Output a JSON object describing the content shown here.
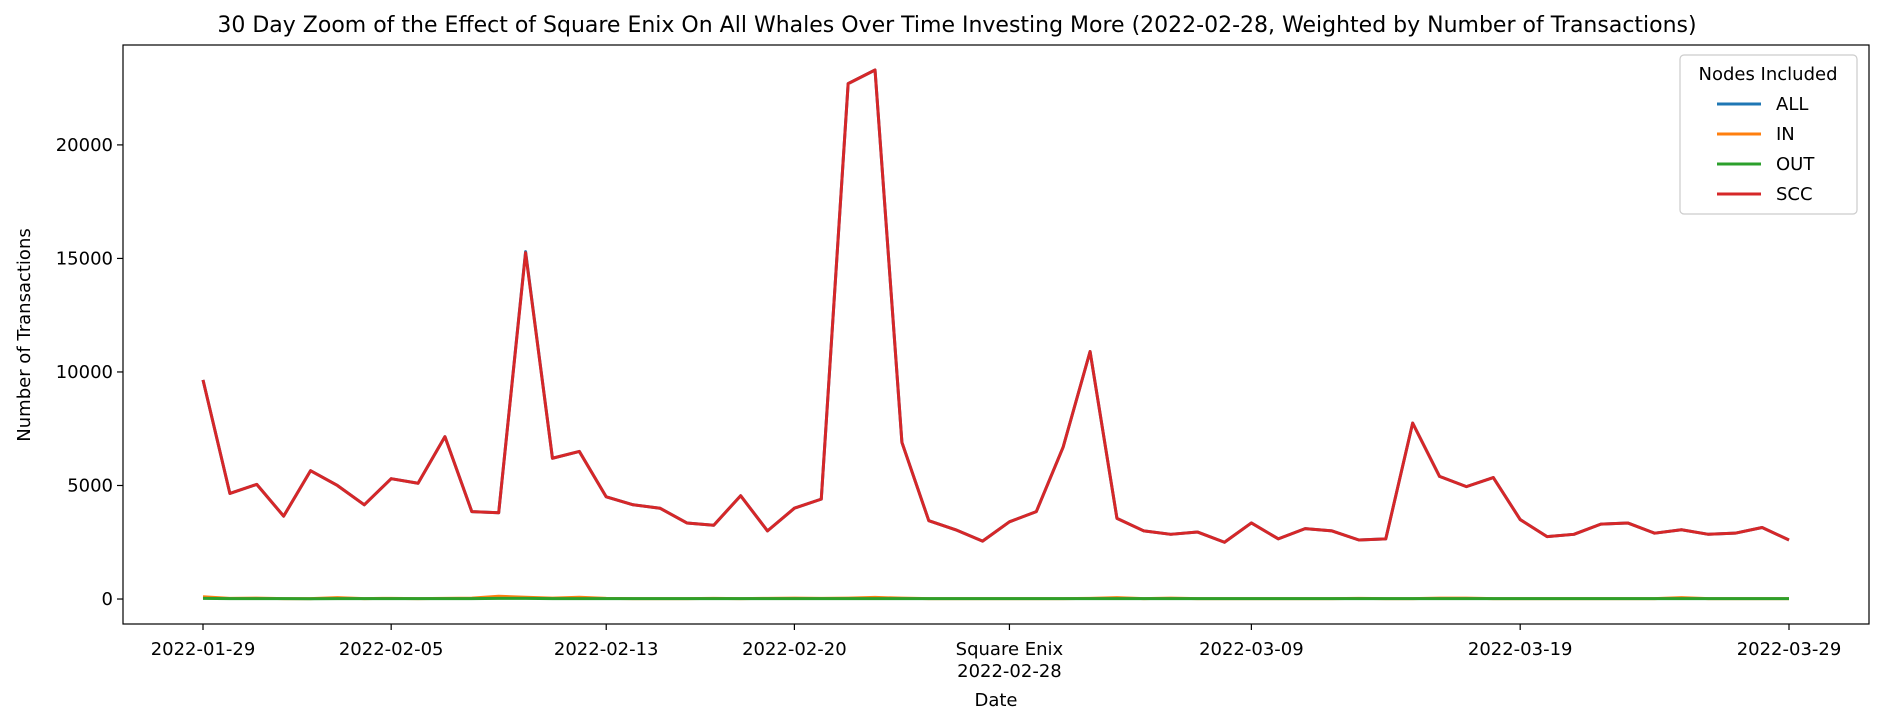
{
  "chart_data": {
    "type": "line",
    "title": "30 Day Zoom of the Effect of Square Enix On All Whales Over Time Investing More (2022-02-28, Weighted by Number of Transactions)",
    "xlabel": "Date",
    "ylabel": "Number of Transactions",
    "ylim": [
      -1100,
      24400
    ],
    "y_ticks": [
      0,
      5000,
      10000,
      15000,
      20000
    ],
    "x_ticks": [
      "2022-01-29",
      "2022-02-05",
      "2022-02-13",
      "2022-02-20",
      "2022-02-28",
      "2022-03-09",
      "2022-03-19",
      "2022-03-29"
    ],
    "event_label": "Square Enix",
    "event_date": "2022-02-28",
    "legend": {
      "title": "Nodes Included",
      "placement": "top-right"
    },
    "grid": false,
    "x": [
      "2022-01-29",
      "2022-01-30",
      "2022-01-31",
      "2022-02-01",
      "2022-02-02",
      "2022-02-03",
      "2022-02-04",
      "2022-02-05",
      "2022-02-06",
      "2022-02-07",
      "2022-02-08",
      "2022-02-09",
      "2022-02-10",
      "2022-02-11",
      "2022-02-12",
      "2022-02-13",
      "2022-02-14",
      "2022-02-15",
      "2022-02-16",
      "2022-02-17",
      "2022-02-18",
      "2022-02-19",
      "2022-02-20",
      "2022-02-21",
      "2022-02-22",
      "2022-02-23",
      "2022-02-24",
      "2022-02-25",
      "2022-02-26",
      "2022-02-27",
      "2022-02-28",
      "2022-03-01",
      "2022-03-02",
      "2022-03-03",
      "2022-03-04",
      "2022-03-05",
      "2022-03-06",
      "2022-03-07",
      "2022-03-08",
      "2022-03-09",
      "2022-03-10",
      "2022-03-11",
      "2022-03-12",
      "2022-03-13",
      "2022-03-14",
      "2022-03-15",
      "2022-03-16",
      "2022-03-17",
      "2022-03-18",
      "2022-03-19",
      "2022-03-20",
      "2022-03-21",
      "2022-03-22",
      "2022-03-23",
      "2022-03-24",
      "2022-03-25",
      "2022-03-26",
      "2022-03-27",
      "2022-03-28",
      "2022-03-29"
    ],
    "series": [
      {
        "name": "ALL",
        "color": "#1f77b4",
        "values": [
          9650,
          4650,
          5050,
          3650,
          5650,
          5000,
          4150,
          5300,
          5100,
          7150,
          3850,
          3800,
          15300,
          6200,
          6500,
          4500,
          4150,
          4000,
          3350,
          3250,
          4550,
          3000,
          4000,
          4400,
          22700,
          23300,
          6900,
          3450,
          3050,
          2550,
          3400,
          3850,
          6700,
          10900,
          3550,
          3000,
          2850,
          2950,
          2500,
          3350,
          2650,
          3100,
          3000,
          2600,
          2650,
          7750,
          5400,
          4950,
          5350,
          3500,
          2750,
          2850,
          3300,
          3350,
          2900,
          3050,
          2850,
          2900,
          3150,
          2600
        ]
      },
      {
        "name": "IN",
        "color": "#ff7f0e",
        "values": [
          100,
          30,
          40,
          20,
          20,
          60,
          20,
          30,
          20,
          30,
          40,
          120,
          80,
          40,
          80,
          30,
          20,
          20,
          20,
          30,
          20,
          30,
          40,
          30,
          40,
          70,
          40,
          20,
          20,
          20,
          20,
          20,
          20,
          30,
          60,
          20,
          40,
          20,
          20,
          20,
          20,
          20,
          20,
          30,
          20,
          20,
          40,
          40,
          20,
          20,
          20,
          20,
          20,
          20,
          20,
          60,
          20,
          20,
          20,
          20
        ]
      },
      {
        "name": "OUT",
        "color": "#2ca02c",
        "values": [
          30,
          20,
          20,
          20,
          10,
          20,
          20,
          20,
          20,
          20,
          20,
          30,
          30,
          20,
          20,
          20,
          20,
          20,
          20,
          20,
          20,
          20,
          20,
          20,
          20,
          20,
          20,
          20,
          20,
          20,
          20,
          20,
          20,
          20,
          20,
          20,
          20,
          20,
          20,
          20,
          20,
          20,
          20,
          20,
          20,
          20,
          20,
          20,
          20,
          20,
          20,
          20,
          20,
          20,
          20,
          20,
          20,
          20,
          20,
          20
        ]
      },
      {
        "name": "SCC",
        "color": "#d62728",
        "values": [
          9650,
          4650,
          5050,
          3650,
          5650,
          5000,
          4150,
          5300,
          5100,
          7150,
          3850,
          3800,
          15250,
          6200,
          6500,
          4500,
          4150,
          4000,
          3350,
          3250,
          4550,
          3000,
          4000,
          4400,
          22700,
          23300,
          6900,
          3450,
          3050,
          2550,
          3400,
          3850,
          6700,
          10900,
          3550,
          3000,
          2850,
          2950,
          2500,
          3350,
          2650,
          3100,
          3000,
          2600,
          2650,
          7750,
          5400,
          4950,
          5350,
          3500,
          2750,
          2850,
          3300,
          3350,
          2900,
          3050,
          2850,
          2900,
          3150,
          2600
        ]
      }
    ]
  }
}
